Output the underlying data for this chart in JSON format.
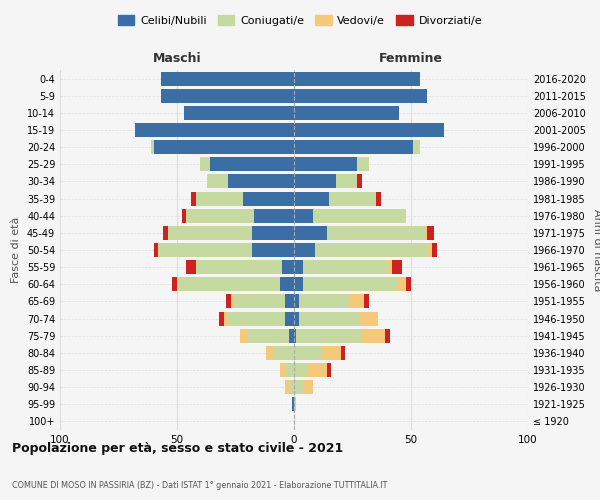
{
  "age_groups": [
    "100+",
    "95-99",
    "90-94",
    "85-89",
    "80-84",
    "75-79",
    "70-74",
    "65-69",
    "60-64",
    "55-59",
    "50-54",
    "45-49",
    "40-44",
    "35-39",
    "30-34",
    "25-29",
    "20-24",
    "15-19",
    "10-14",
    "5-9",
    "0-4"
  ],
  "birth_years": [
    "≤ 1920",
    "1921-1925",
    "1926-1930",
    "1931-1935",
    "1936-1940",
    "1941-1945",
    "1946-1950",
    "1951-1955",
    "1956-1960",
    "1961-1965",
    "1966-1970",
    "1971-1975",
    "1976-1980",
    "1981-1985",
    "1986-1990",
    "1991-1995",
    "1996-2000",
    "2001-2005",
    "2006-2010",
    "2011-2015",
    "2016-2020"
  ],
  "males": {
    "celibi": [
      0,
      1,
      0,
      0,
      0,
      2,
      4,
      4,
      6,
      5,
      18,
      18,
      17,
      22,
      28,
      36,
      60,
      68,
      47,
      57,
      57
    ],
    "coniugati": [
      0,
      0,
      2,
      4,
      9,
      18,
      24,
      22,
      44,
      37,
      40,
      36,
      29,
      20,
      9,
      4,
      1,
      0,
      0,
      0,
      0
    ],
    "vedovi": [
      0,
      0,
      2,
      2,
      3,
      3,
      2,
      1,
      0,
      0,
      0,
      0,
      0,
      0,
      0,
      0,
      0,
      0,
      0,
      0,
      0
    ],
    "divorziati": [
      0,
      0,
      0,
      0,
      0,
      0,
      2,
      2,
      2,
      4,
      2,
      2,
      2,
      2,
      0,
      0,
      0,
      0,
      0,
      0,
      0
    ]
  },
  "females": {
    "nubili": [
      0,
      0,
      0,
      0,
      0,
      1,
      2,
      2,
      4,
      4,
      9,
      14,
      8,
      15,
      18,
      27,
      51,
      64,
      45,
      57,
      54
    ],
    "coniugate": [
      0,
      1,
      4,
      6,
      12,
      28,
      26,
      22,
      40,
      36,
      48,
      42,
      40,
      20,
      9,
      5,
      3,
      0,
      0,
      0,
      0
    ],
    "vedove": [
      0,
      0,
      4,
      8,
      8,
      10,
      8,
      6,
      4,
      2,
      2,
      1,
      0,
      0,
      0,
      0,
      0,
      0,
      0,
      0,
      0
    ],
    "divorziate": [
      0,
      0,
      0,
      2,
      2,
      2,
      0,
      2,
      2,
      4,
      2,
      3,
      0,
      2,
      2,
      0,
      0,
      0,
      0,
      0,
      0
    ]
  },
  "color_celibi": "#3a6ea5",
  "color_coniugati": "#c5d9a0",
  "color_vedovi": "#f5c97a",
  "color_divorziati": "#cc2222",
  "background_color": "#f5f5f5",
  "grid_color": "#dddddd",
  "title": "Popolazione per età, sesso e stato civile - 2021",
  "subtitle": "COMUNE DI MOSO IN PASSIRIA (BZ) - Dati ISTAT 1° gennaio 2021 - Elaborazione TUTTITALIA.IT",
  "xlabel_maschi": "Maschi",
  "xlabel_femmine": "Femmine",
  "ylabel_left": "Fasce di età",
  "ylabel_right": "Anni di nascita",
  "xlim": 100,
  "legend_labels": [
    "Celibi/Nubili",
    "Coniugati/e",
    "Vedovi/e",
    "Divorziati/e"
  ]
}
